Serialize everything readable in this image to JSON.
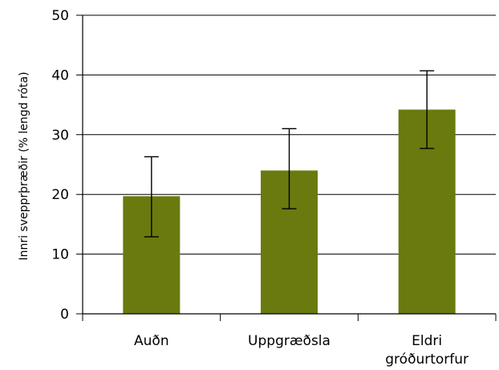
{
  "chart_data": {
    "type": "bar",
    "categories": [
      [
        "Auðn"
      ],
      [
        "Uppgræðsla"
      ],
      [
        "Eldri",
        "gróðurtorfur"
      ]
    ],
    "values": [
      19.7,
      24.0,
      34.2
    ],
    "error_low": [
      12.9,
      17.6,
      27.7
    ],
    "error_high": [
      26.3,
      31.0,
      40.7
    ],
    "ylabel": "Innri svepprþræðir (% lengd róta)",
    "ylim": [
      0,
      50
    ],
    "yticks": [
      "0",
      "10",
      "20",
      "30",
      "40",
      "50"
    ],
    "grid": "horizontal",
    "bar_color": "#6b7a0e"
  }
}
